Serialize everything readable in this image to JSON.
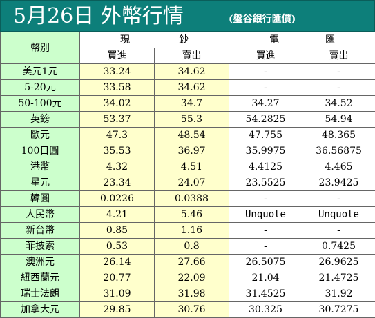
{
  "title": {
    "main": "5月26日 外幣行情",
    "source": "(盤谷銀行匯價)"
  },
  "headers": {
    "currency": "幣別",
    "cash_chars": [
      "現",
      "鈔"
    ],
    "wire_chars": [
      "電",
      "匯"
    ],
    "cash_buy": "買進",
    "cash_sell": "賣出",
    "wire_buy": "買進",
    "wire_sell": "賣出"
  },
  "rows": [
    {
      "name": "美元1元",
      "cash_buy": "33.24",
      "cash_sell": "34.62",
      "wire_buy": "-",
      "wire_sell": "-"
    },
    {
      "name": "5-20元",
      "cash_buy": "33.58",
      "cash_sell": "34.62",
      "wire_buy": "-",
      "wire_sell": "-"
    },
    {
      "name": "50-100元",
      "cash_buy": "34.02",
      "cash_sell": "34.7",
      "wire_buy": "34.27",
      "wire_sell": "34.52"
    },
    {
      "name": "英鎊",
      "cash_buy": "53.37",
      "cash_sell": "55.3",
      "wire_buy": "54.2825",
      "wire_sell": "54.94"
    },
    {
      "name": "歐元",
      "cash_buy": "47.3",
      "cash_sell": "48.54",
      "wire_buy": "47.755",
      "wire_sell": "48.365"
    },
    {
      "name": "100日圓",
      "cash_buy": "35.53",
      "cash_sell": "36.97",
      "wire_buy": "35.9975",
      "wire_sell": "36.56875"
    },
    {
      "name": "港幣",
      "cash_buy": "4.32",
      "cash_sell": "4.51",
      "wire_buy": "4.4125",
      "wire_sell": "4.465"
    },
    {
      "name": "星元",
      "cash_buy": "23.34",
      "cash_sell": "24.07",
      "wire_buy": "23.5525",
      "wire_sell": "23.9425"
    },
    {
      "name": "韓圓",
      "cash_buy": "0.0226",
      "cash_sell": "0.0388",
      "wire_buy": "-",
      "wire_sell": "-"
    },
    {
      "name": "人民幣",
      "cash_buy": "4.21",
      "cash_sell": "5.46",
      "wire_buy": "Unquote",
      "wire_sell": "Unquote"
    },
    {
      "name": "新台幣",
      "cash_buy": "0.85",
      "cash_sell": "1.16",
      "wire_buy": "-",
      "wire_sell": "-"
    },
    {
      "name": "菲披索",
      "cash_buy": "0.53",
      "cash_sell": "0.8",
      "wire_buy": "-",
      "wire_sell": "0.7425"
    },
    {
      "name": "澳洲元",
      "cash_buy": "26.14",
      "cash_sell": "27.66",
      "wire_buy": "26.5075",
      "wire_sell": "26.9625"
    },
    {
      "name": "紐西蘭元",
      "cash_buy": "20.77",
      "cash_sell": "22.09",
      "wire_buy": "21.04",
      "wire_sell": "21.4725"
    },
    {
      "name": "瑞士法朗",
      "cash_buy": "31.09",
      "cash_sell": "31.98",
      "wire_buy": "31.4525",
      "wire_sell": "31.92"
    },
    {
      "name": "加拿大元",
      "cash_buy": "29.85",
      "cash_sell": "30.76",
      "wire_buy": "30.325",
      "wire_sell": "30.7275"
    }
  ],
  "colors": {
    "title_bg": "#0d7f7a",
    "label_bg": "#ccffcc",
    "cash_bg": "#ffffcc",
    "wire_bg": "#ffffff",
    "border": "#666666"
  }
}
